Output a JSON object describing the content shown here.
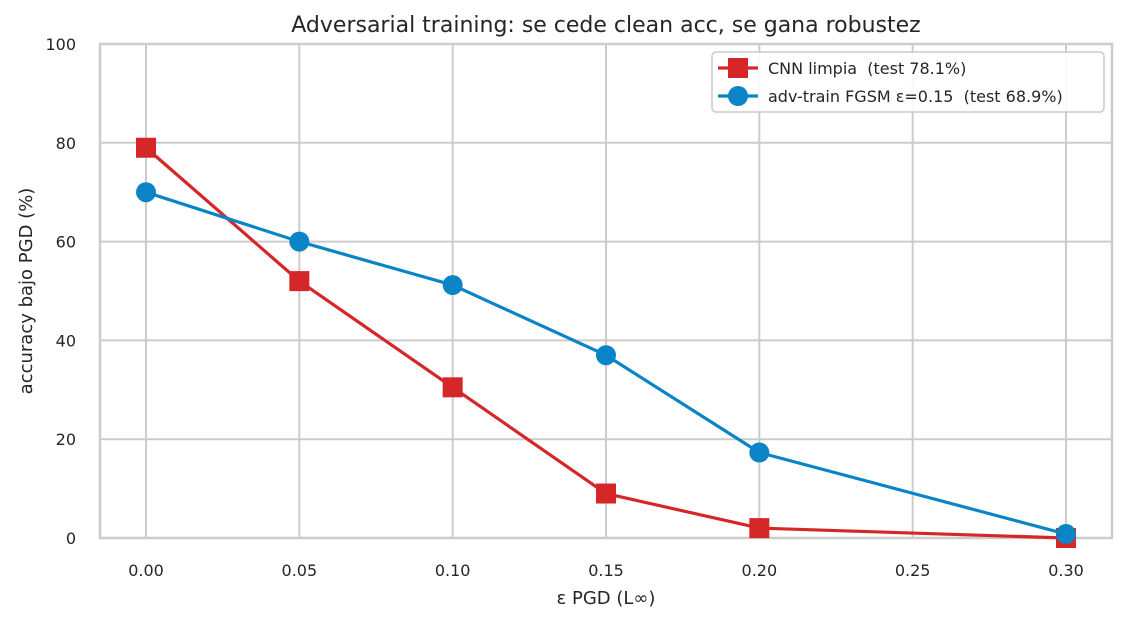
{
  "chart_data": {
    "type": "line",
    "title": "Adversarial training: se cede clean acc, se gana robustez",
    "xlabel": "ε PGD (L∞)",
    "ylabel": "accuracy bajo PGD (%)",
    "xlim": [
      -0.015,
      0.315
    ],
    "ylim": [
      0,
      100
    ],
    "x_ticks": [
      "0.00",
      "0.05",
      "0.10",
      "0.15",
      "0.20",
      "0.25",
      "0.30"
    ],
    "x_tick_values": [
      0.0,
      0.05,
      0.1,
      0.15,
      0.2,
      0.25,
      0.3
    ],
    "y_ticks": [
      "0",
      "20",
      "40",
      "60",
      "80",
      "100"
    ],
    "y_tick_values": [
      0,
      20,
      40,
      60,
      80,
      100
    ],
    "grid": true,
    "legend_position": "top-right",
    "series": [
      {
        "name": "CNN limpia  (test 78.1%)",
        "color": "#d62728",
        "marker": "square",
        "x": [
          0.0,
          0.05,
          0.1,
          0.15,
          0.2,
          0.3
        ],
        "values": [
          79.0,
          52.0,
          30.5,
          9.0,
          2.0,
          0.0
        ]
      },
      {
        "name": "adv-train FGSM ε=0.15  (test 68.9%)",
        "color": "#0a84c6",
        "marker": "circle",
        "x": [
          0.0,
          0.05,
          0.1,
          0.15,
          0.2,
          0.3
        ],
        "values": [
          70.0,
          60.0,
          51.2,
          37.0,
          17.3,
          0.8
        ]
      }
    ]
  }
}
